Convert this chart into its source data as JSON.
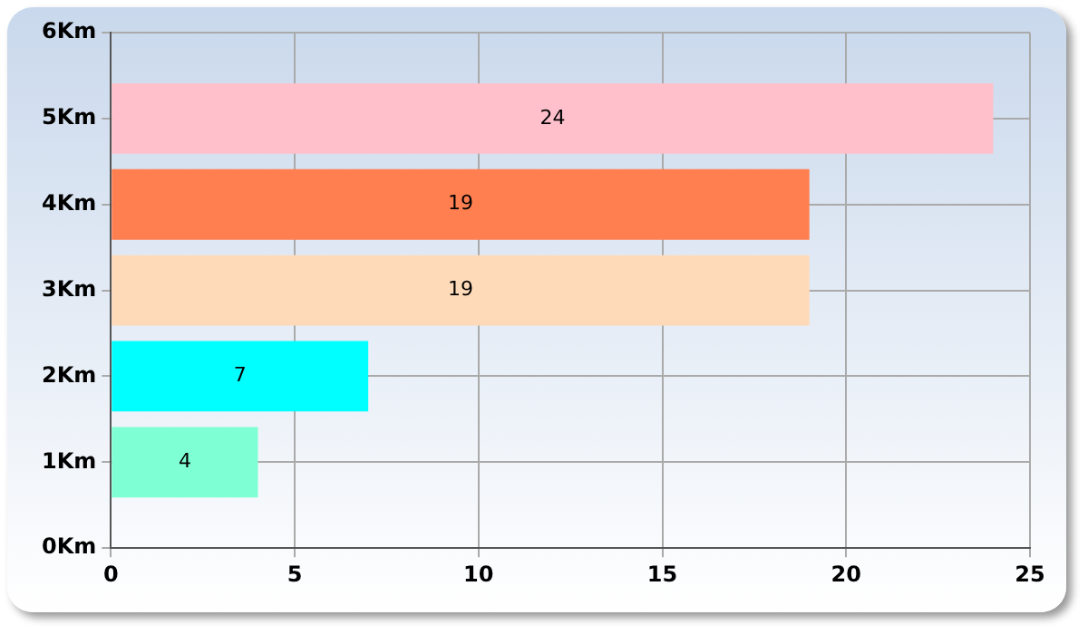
{
  "chart_data": {
    "type": "bar",
    "orientation": "horizontal",
    "categories": [
      "6Km",
      "5Km",
      "4Km",
      "3Km",
      "2Km",
      "1Km",
      "0Km"
    ],
    "values": [
      null,
      24,
      19,
      19,
      7,
      4,
      null
    ],
    "colors": [
      null,
      "#ffc0cb",
      "#ff7f50",
      "#ffdab9",
      "#00ffff",
      "#7fffd4",
      null
    ],
    "xlim": [
      0,
      25
    ],
    "xticks": [
      0,
      5,
      10,
      15,
      20,
      25
    ],
    "grid": true,
    "data_labels": true
  }
}
